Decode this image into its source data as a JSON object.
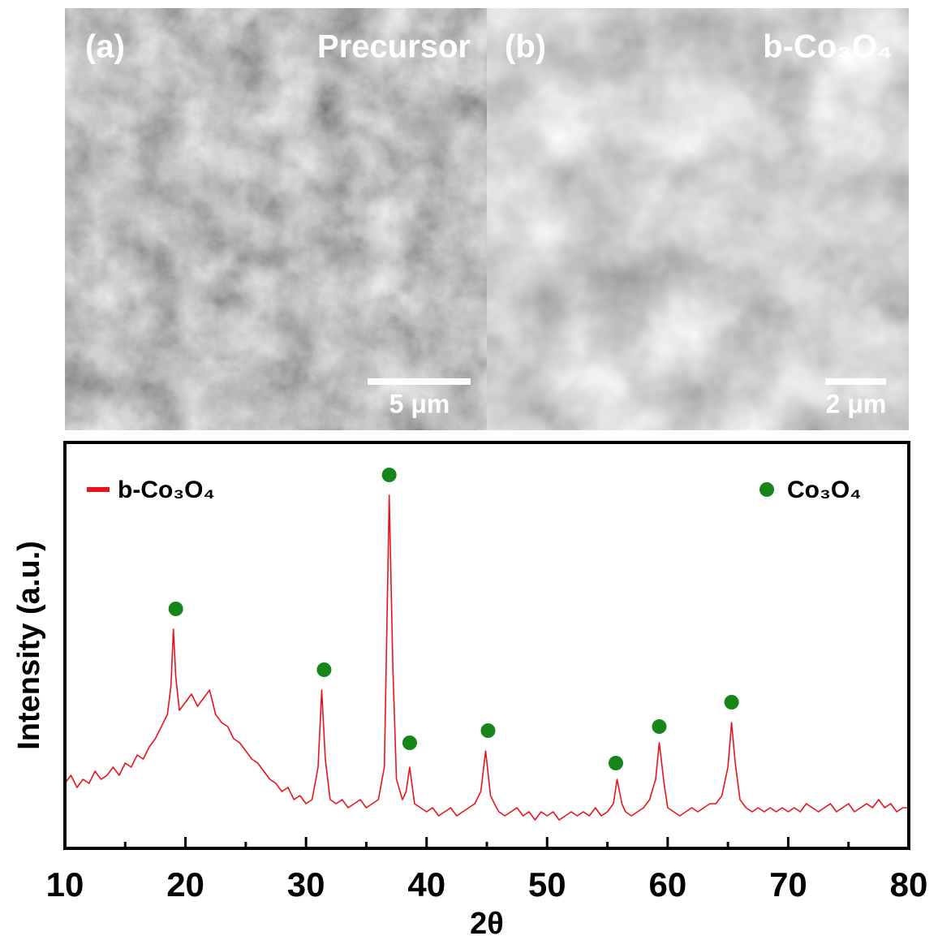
{
  "images": [
    {
      "label": "(a)",
      "title": "Precursor",
      "scale_bar": "5 μm"
    },
    {
      "label": "(b)",
      "title": "b-Co₃O₄",
      "scale_bar": "2 μm"
    }
  ],
  "chart_data": {
    "type": "line",
    "xlabel": "2θ",
    "ylabel": "Intensity (a.u.)",
    "xlim": [
      10,
      80
    ],
    "xticks": [
      10,
      20,
      30,
      40,
      50,
      60,
      70,
      80
    ],
    "xminorticks": [
      15,
      25,
      35,
      45,
      55,
      65,
      75
    ],
    "ylim": [
      0,
      100
    ],
    "series": [
      {
        "name": "b-Co₃O₄",
        "color": "#e8141c",
        "x": [
          10,
          10.5,
          11,
          11.5,
          12,
          12.5,
          13,
          13.5,
          14,
          14.5,
          15,
          15.5,
          16,
          16.5,
          17,
          17.5,
          18,
          18.5,
          18.8,
          19,
          19.2,
          19.5,
          20,
          20.5,
          21,
          21.5,
          22,
          22.5,
          23,
          23.5,
          24,
          24.5,
          25,
          25.5,
          26,
          26.5,
          27,
          27.5,
          28,
          28.5,
          29,
          29.5,
          30,
          30.5,
          31,
          31.3,
          31.6,
          32,
          32.5,
          33,
          33.5,
          34,
          34.5,
          35,
          35.5,
          36,
          36.5,
          36.9,
          37.2,
          37.5,
          38,
          38.3,
          38.6,
          39,
          39.5,
          40,
          40.5,
          41,
          41.5,
          42,
          42.5,
          43,
          43.5,
          44,
          44.5,
          44.9,
          45.3,
          45.8,
          46,
          46.5,
          47,
          47.5,
          48,
          48.5,
          49,
          49.5,
          50,
          50.5,
          51,
          51.5,
          52,
          52.5,
          53,
          53.5,
          54,
          54.5,
          55,
          55.5,
          55.8,
          56.2,
          56.5,
          57,
          57.5,
          58,
          58.5,
          59,
          59.3,
          59.7,
          60,
          60.5,
          61,
          61.5,
          62,
          62.5,
          63,
          63.5,
          64,
          64.5,
          65,
          65.3,
          65.6,
          66,
          66.5,
          67,
          67.5,
          68,
          68.5,
          69,
          69.5,
          70,
          70.5,
          71,
          71.5,
          72,
          72.5,
          73,
          73.5,
          74,
          74.5,
          75,
          75.5,
          76,
          76.5,
          77,
          77.5,
          78,
          78.5,
          79,
          79.5,
          80
        ],
        "values": [
          16,
          18,
          15,
          17,
          16,
          19,
          17,
          18,
          20,
          18,
          21,
          20,
          23,
          22,
          25,
          27,
          30,
          33,
          40,
          54,
          42,
          34,
          36,
          38,
          35,
          37,
          39,
          33,
          31,
          30,
          27,
          26,
          24,
          22,
          21,
          19,
          17,
          16,
          14,
          15,
          12,
          13,
          11,
          12,
          20,
          39,
          22,
          12,
          11,
          12,
          10,
          11,
          12,
          10,
          11,
          12,
          20,
          87,
          45,
          17,
          12,
          14,
          20,
          11,
          10,
          9,
          10,
          8,
          9,
          10,
          8,
          9,
          10,
          11,
          14,
          24,
          13,
          10,
          9,
          8,
          9,
          10,
          8,
          9,
          7,
          9,
          8,
          9,
          7,
          8,
          9,
          8,
          9,
          8,
          10,
          8,
          9,
          11,
          17,
          11,
          9,
          8,
          9,
          10,
          12,
          17,
          26,
          16,
          10,
          9,
          8,
          9,
          10,
          9,
          10,
          11,
          11,
          13,
          20,
          31,
          21,
          12,
          10,
          9,
          10,
          9,
          10,
          9,
          10,
          9,
          10,
          9,
          11,
          10,
          9,
          10,
          11,
          9,
          10,
          11,
          9,
          10,
          11,
          10,
          12,
          10,
          11,
          9,
          10,
          10
        ]
      },
      {
        "name": "Co₃O₄",
        "color": "#17861a",
        "marker": "circle",
        "x": [
          19.2,
          31.5,
          36.9,
          38.6,
          45.1,
          55.7,
          59.3,
          65.3
        ],
        "values": [
          59,
          44,
          92,
          26,
          29,
          21,
          30,
          36
        ]
      }
    ]
  }
}
